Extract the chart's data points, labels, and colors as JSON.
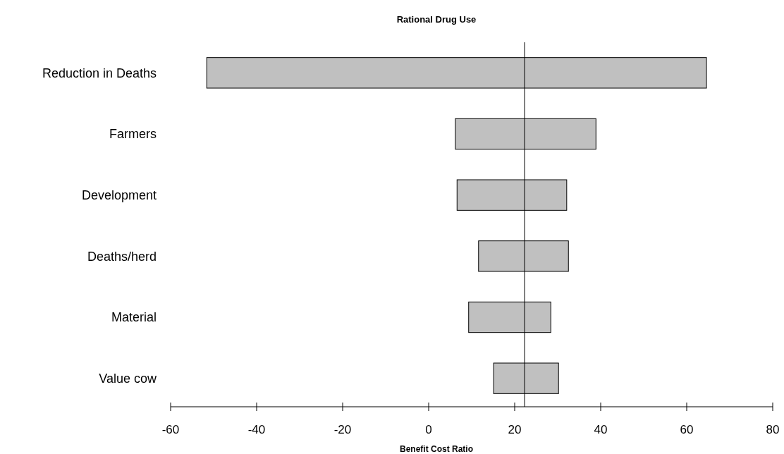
{
  "chart_data": {
    "type": "bar",
    "orientation": "horizontal",
    "title": "Rational Drug Use",
    "xlabel": "Benefit Cost Ratio",
    "categories": [
      "Reduction in Deaths",
      "Farmers",
      "Development",
      "Deaths/herd",
      "Material",
      "Value cow"
    ],
    "base": [
      -51.6,
      6.2,
      6.6,
      11.6,
      9.3,
      15.1
    ],
    "values": [
      116.2,
      32.7,
      25.5,
      20.9,
      19.1,
      15.1
    ],
    "color": "#c0c0c0",
    "xlim": [
      -60,
      80
    ],
    "xticks": [
      -60,
      -40,
      -20,
      0,
      20,
      40,
      60,
      80
    ],
    "ref_lines": [
      {
        "axis": "x",
        "value": 22.3,
        "color": "#000000"
      }
    ],
    "grid": false
  }
}
